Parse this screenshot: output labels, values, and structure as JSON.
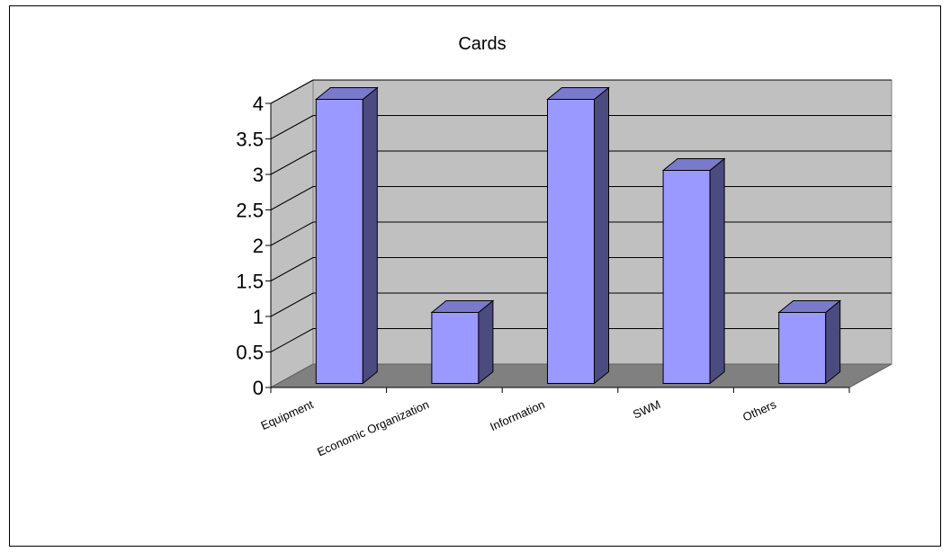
{
  "chart_data": {
    "type": "bar",
    "title": "Cards",
    "categories": [
      "Equipment",
      "Economic Organization",
      "Information",
      "SWM",
      "Others"
    ],
    "series": [
      {
        "values": [
          4,
          1,
          4,
          3,
          1
        ]
      }
    ],
    "ylim": [
      0,
      4
    ],
    "yticks": [
      "0",
      "0.5",
      "1",
      "1.5",
      "2",
      "2.5",
      "3",
      "3.5",
      "4"
    ],
    "grid": true,
    "legend": "none",
    "style": "3d-column",
    "colors": {
      "bar_front": "#9999ff",
      "bar_side": "#4b4b7f",
      "bar_top": "#7a7acc",
      "wall": "#c0c0c0",
      "floor": "#808080"
    }
  }
}
